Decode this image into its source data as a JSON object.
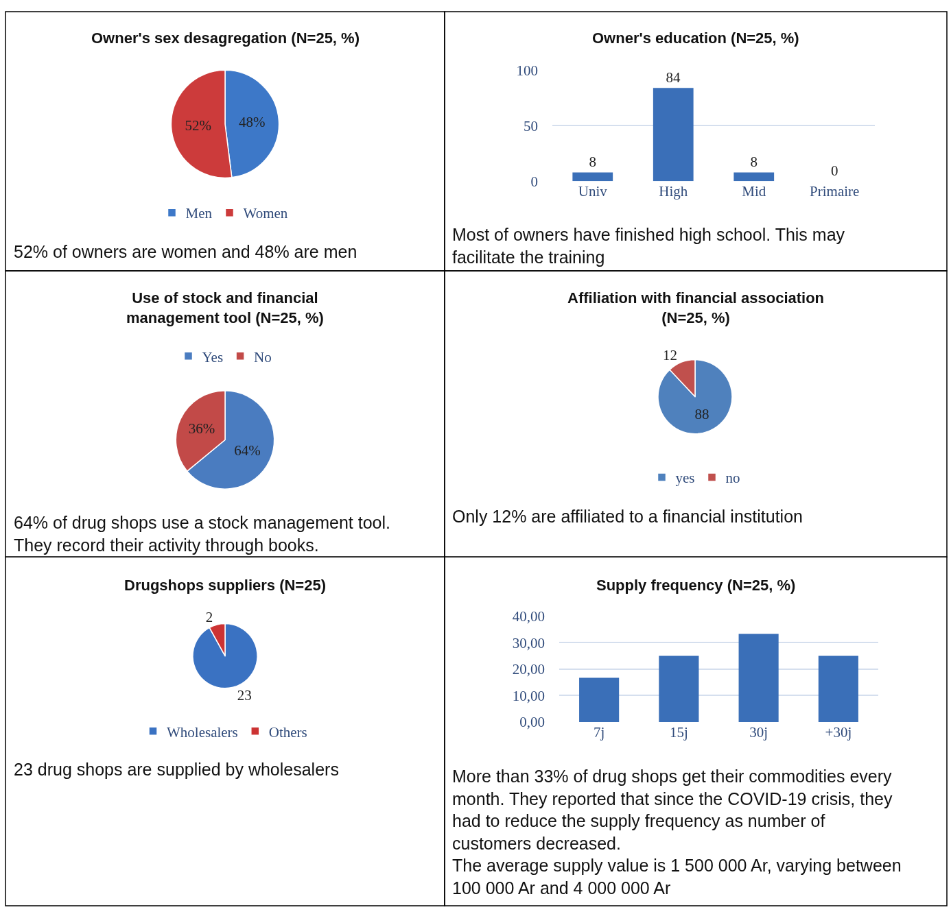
{
  "chart_data": [
    {
      "type": "pie",
      "title": "Owner's sex desagregation (N=25, %)",
      "categories": [
        "Men",
        "Women"
      ],
      "values": [
        48,
        52
      ],
      "value_labels": [
        "48%",
        "52%"
      ],
      "colors": [
        "#3d78c8",
        "#cc3b3b"
      ],
      "legend": "bottom",
      "annotations": [
        "52% of owners are women and 48% are men"
      ]
    },
    {
      "type": "bar",
      "title": "Owner's education (N=25, %)",
      "categories": [
        "Univ",
        "High",
        "Mid",
        "Primaire"
      ],
      "values": [
        8,
        84,
        8,
        0
      ],
      "color": "#3a6fb8",
      "data_labels": true,
      "ylim": [
        0,
        100
      ],
      "yticks": [
        0,
        50,
        100
      ],
      "grid": "y",
      "annotations": [
        "Most of owners have finished high school. This may\nfacilitate the training"
      ]
    },
    {
      "type": "pie",
      "title": "Use of stock and financial\nmanagement tool (N=25, %)",
      "categories": [
        "Yes",
        "No"
      ],
      "values": [
        64,
        36
      ],
      "value_labels": [
        "64%",
        "36%"
      ],
      "colors": [
        "#4a7cc0",
        "#c24a48"
      ],
      "legend": "top",
      "annotations": [
        "64% of drug shops use a stock management tool.\nThey record their activity through books."
      ]
    },
    {
      "type": "pie",
      "title": "Affiliation with financial association\n(N=25, %)",
      "categories": [
        "yes",
        "no"
      ],
      "values": [
        88,
        12
      ],
      "data_labels": true,
      "colors": [
        "#4f81bd",
        "#c0504d"
      ],
      "legend": "bottom",
      "annotations": [
        "Only 12% are affiliated to a financial institution"
      ]
    },
    {
      "type": "pie",
      "title": "Drugshops suppliers (N=25)",
      "categories": [
        "Wholesalers",
        "Others"
      ],
      "values": [
        23,
        2
      ],
      "data_labels": true,
      "colors": [
        "#3a72c2",
        "#cc3333"
      ],
      "legend": "bottom",
      "annotations": [
        "23 drug shops are supplied by wholesalers"
      ]
    },
    {
      "type": "bar",
      "title": "Supply frequency (N=25, %)",
      "categories": [
        "7j",
        "15j",
        "30j",
        "+30j"
      ],
      "values": [
        16.7,
        25,
        33.3,
        25
      ],
      "color": "#3a6fb8",
      "ylim": [
        0,
        40
      ],
      "yticks": [
        {
          "value": 0,
          "label": "0,00"
        },
        {
          "value": 10,
          "label": "10,00"
        },
        {
          "value": 20,
          "label": "20,00"
        },
        {
          "value": 30,
          "label": "30,00"
        },
        {
          "value": 40,
          "label": "40,00"
        }
      ],
      "grid": "y",
      "annotations": [
        "More than 33% of drug shops get their commodities every\nmonth. They reported that since the COVID-19 crisis, they\nhad to reduce the supply frequency as number of\ncustomers decreased.\nThe average supply value is 1 500 000 Ar, varying between\n100 000 Ar and 4 000 000 Ar"
      ]
    }
  ]
}
